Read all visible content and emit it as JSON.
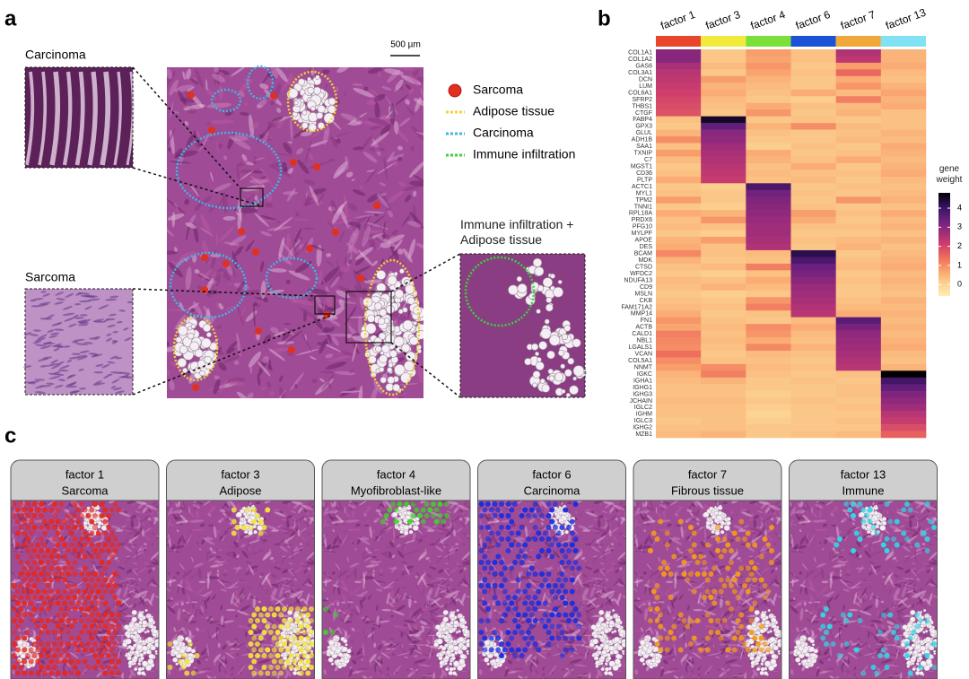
{
  "panel_labels": {
    "a": "a",
    "b": "b",
    "c": "c"
  },
  "panel_a": {
    "insets": [
      "Carcinoma",
      "Sarcoma"
    ],
    "inset_right": "Immune infiltration + Adipose tissue",
    "scale_bar": "500 µm",
    "legend": [
      {
        "label": "Sarcoma",
        "color": "#e2301e"
      },
      {
        "label": "Adipose tissue",
        "color": "#f2d23a"
      },
      {
        "label": "Carcinoma",
        "color": "#3bb8e6"
      },
      {
        "label": "Immune infiltration",
        "color": "#39d43a"
      }
    ]
  },
  "chart_data": {
    "type": "heatmap",
    "x": [
      "factor 1",
      "factor 3",
      "factor 4",
      "factor 6",
      "factor 7",
      "factor 13"
    ],
    "column_colors": [
      "#e8452c",
      "#f2ea3a",
      "#7be03a",
      "#1c52d8",
      "#f0a83a",
      "#80e2f2"
    ],
    "categories": [
      "COL1A1",
      "COL1A2",
      "GAS6",
      "COL3A1",
      "DCN",
      "LUM",
      "COL6A1",
      "SFRP2",
      "THBS1",
      "CTGF",
      "FABP4",
      "GPX3",
      "GLUL",
      "ADH1B",
      "SAA1",
      "TXNIP",
      "C7",
      "MGST1",
      "CD36",
      "PLTP",
      "ACTC1",
      "MYL1",
      "TPM2",
      "TNNI1",
      "RPL18A",
      "PRDX6",
      "PFG10",
      "MYLPF",
      "APOE",
      "DES",
      "BCAM",
      "MDK",
      "CTSD",
      "WFDC2",
      "NDUFA13",
      "CD9",
      "MSLN",
      "CKB",
      "FAM171A2",
      "MMP14",
      "FN1",
      "ACTB",
      "CALD1",
      "NBL1",
      "LGALS1",
      "VCAN",
      "COL5A1",
      "NNMT",
      "IGKC",
      "IGHA1",
      "IGHG1",
      "IGHG3",
      "JCHAIN",
      "IGLC2",
      "IGHM",
      "IGLC3",
      "IGHG2",
      "MZB1"
    ],
    "values": [
      [
        3.0,
        0.2,
        0.8,
        0.3,
        2.5,
        0.5
      ],
      [
        3.0,
        0.2,
        0.7,
        0.3,
        2.3,
        0.5
      ],
      [
        2.6,
        0.4,
        0.9,
        0.2,
        0.8,
        0.6
      ],
      [
        2.4,
        0.2,
        0.7,
        0.3,
        1.5,
        0.4
      ],
      [
        2.3,
        0.8,
        0.5,
        0.2,
        0.6,
        0.3
      ],
      [
        2.2,
        0.5,
        0.4,
        0.2,
        0.9,
        0.5
      ],
      [
        2.1,
        0.6,
        0.3,
        0.6,
        0.4,
        0.7
      ],
      [
        2.0,
        0.4,
        0.2,
        0.1,
        1.2,
        0.5
      ],
      [
        1.9,
        0.3,
        0.6,
        0.3,
        0.4,
        0.6
      ],
      [
        1.8,
        0.2,
        0.9,
        0.2,
        0.5,
        0.3
      ],
      [
        0.3,
        4.5,
        0.2,
        0.3,
        0.2,
        0.3
      ],
      [
        0.2,
        3.5,
        0.5,
        1.0,
        0.4,
        0.3
      ],
      [
        0.5,
        3.0,
        0.3,
        0.2,
        0.3,
        0.5
      ],
      [
        1.0,
        2.9,
        0.2,
        0.2,
        0.4,
        0.4
      ],
      [
        0.3,
        2.7,
        0.1,
        0.3,
        0.2,
        0.6
      ],
      [
        0.8,
        2.6,
        0.6,
        0.2,
        0.3,
        0.5
      ],
      [
        0.4,
        2.5,
        0.5,
        0.3,
        0.6,
        0.4
      ],
      [
        0.2,
        2.4,
        0.3,
        0.6,
        0.2,
        0.5
      ],
      [
        0.3,
        2.3,
        0.4,
        0.3,
        0.3,
        0.6
      ],
      [
        0.6,
        2.2,
        0.3,
        0.4,
        0.2,
        0.4
      ],
      [
        0.2,
        0.1,
        3.8,
        0.2,
        0.3,
        0.3
      ],
      [
        0.3,
        0.2,
        3.3,
        0.3,
        0.2,
        0.4
      ],
      [
        0.8,
        0.2,
        3.1,
        0.2,
        0.9,
        0.5
      ],
      [
        0.2,
        0.1,
        3.0,
        0.3,
        0.2,
        0.3
      ],
      [
        0.6,
        0.5,
        2.9,
        0.8,
        0.3,
        0.6
      ],
      [
        0.3,
        0.9,
        2.8,
        0.6,
        0.2,
        0.4
      ],
      [
        0.4,
        0.3,
        2.7,
        0.3,
        0.3,
        0.5
      ],
      [
        0.2,
        0.1,
        2.7,
        0.2,
        0.2,
        0.3
      ],
      [
        0.5,
        0.8,
        2.6,
        0.3,
        0.4,
        0.5
      ],
      [
        0.6,
        0.3,
        2.5,
        0.2,
        0.5,
        0.3
      ],
      [
        1.1,
        0.3,
        0.4,
        4.2,
        0.2,
        0.4
      ],
      [
        0.5,
        0.2,
        0.3,
        3.8,
        0.3,
        0.5
      ],
      [
        0.3,
        0.4,
        1.2,
        3.4,
        0.4,
        0.6
      ],
      [
        0.2,
        0.1,
        0.3,
        3.2,
        0.2,
        0.4
      ],
      [
        0.4,
        0.3,
        0.6,
        3.0,
        0.3,
        0.5
      ],
      [
        0.3,
        0.5,
        0.4,
        2.8,
        0.2,
        0.4
      ],
      [
        0.2,
        0.1,
        0.2,
        2.7,
        0.2,
        0.3
      ],
      [
        0.3,
        0.2,
        0.9,
        2.6,
        0.3,
        0.5
      ],
      [
        0.4,
        0.3,
        1.2,
        2.5,
        0.4,
        0.4
      ],
      [
        0.6,
        0.2,
        0.3,
        2.4,
        0.6,
        0.5
      ],
      [
        0.9,
        0.3,
        0.2,
        0.4,
        3.6,
        0.4
      ],
      [
        0.7,
        0.4,
        1.0,
        0.6,
        3.2,
        0.5
      ],
      [
        1.2,
        0.3,
        0.9,
        0.4,
        2.9,
        0.4
      ],
      [
        1.1,
        0.4,
        0.6,
        0.3,
        2.8,
        0.5
      ],
      [
        1.0,
        0.3,
        1.1,
        0.5,
        2.7,
        0.6
      ],
      [
        1.4,
        0.2,
        0.4,
        0.3,
        2.6,
        0.4
      ],
      [
        1.0,
        0.3,
        0.3,
        0.2,
        2.5,
        0.3
      ],
      [
        0.8,
        1.0,
        0.4,
        0.3,
        2.4,
        0.5
      ],
      [
        0.5,
        1.2,
        0.3,
        0.2,
        0.3,
        4.8
      ],
      [
        0.4,
        0.5,
        0.2,
        0.3,
        0.2,
        3.9
      ],
      [
        0.3,
        0.3,
        0.2,
        0.2,
        0.3,
        3.5
      ],
      [
        0.3,
        0.3,
        0.1,
        0.2,
        0.3,
        3.1
      ],
      [
        0.4,
        0.4,
        0.2,
        0.3,
        0.2,
        2.9
      ],
      [
        0.3,
        0.3,
        0.1,
        0.2,
        0.3,
        2.7
      ],
      [
        0.3,
        0.3,
        0.0,
        0.2,
        0.2,
        2.4
      ],
      [
        0.2,
        0.3,
        0.1,
        0.2,
        0.3,
        2.2
      ],
      [
        0.3,
        0.3,
        0.2,
        0.2,
        0.2,
        1.9
      ],
      [
        0.4,
        0.5,
        0.2,
        0.3,
        0.4,
        1.6
      ]
    ],
    "zlim": [
      -0.6,
      4.8
    ],
    "zticks": [
      0,
      1,
      2,
      3,
      4
    ],
    "colorbar_title": "gene weight",
    "colormap": [
      "#fdeeb3",
      "#fcd08f",
      "#f9a26c",
      "#ef6d5c",
      "#cf3f6c",
      "#9a2b7b",
      "#651f7e",
      "#33115a",
      "#000004"
    ]
  },
  "panel_c": {
    "panels": [
      {
        "factor": "factor 1",
        "name": "Sarcoma",
        "color": "#e8281c"
      },
      {
        "factor": "factor 3",
        "name": "Adipose",
        "color": "#f2e63a"
      },
      {
        "factor": "factor 4",
        "name": "Myofibroblast-like",
        "color": "#3ed42a"
      },
      {
        "factor": "factor 6",
        "name": "Carcinoma",
        "color": "#1a2ee0"
      },
      {
        "factor": "factor 7",
        "name": "Fibrous tissue",
        "color": "#f39a1a"
      },
      {
        "factor": "factor 13",
        "name": "Immune",
        "color": "#2fd8e8"
      }
    ]
  }
}
